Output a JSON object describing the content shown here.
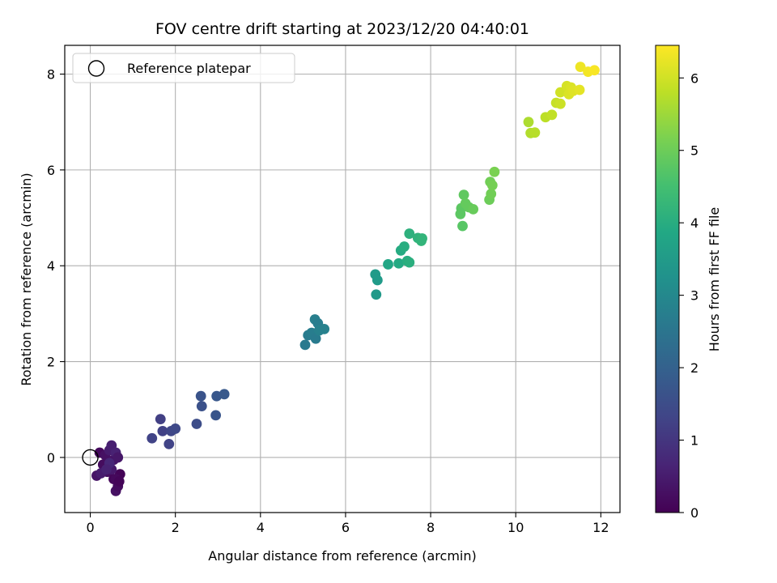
{
  "chart_data": {
    "type": "scatter",
    "title": "FOV centre drift starting at 2023/12/20 04:40:01",
    "xlabel": "Angular distance from reference (arcmin)",
    "ylabel": "Rotation from reference (arcmin)",
    "xlim": [
      -0.6,
      12.45
    ],
    "ylim": [
      -1.15,
      8.6
    ],
    "xticks": [
      0,
      2,
      4,
      6,
      8,
      10,
      12
    ],
    "yticks": [
      0,
      2,
      4,
      6,
      8
    ],
    "grid": true,
    "legend": {
      "placement": "top-left",
      "entries": [
        "Reference platepar"
      ]
    },
    "reference_point": {
      "x": 0,
      "y": 0
    },
    "colorbar": {
      "label": "Hours from first FF file",
      "range": [
        0,
        6.45
      ],
      "ticks": [
        0,
        1,
        2,
        3,
        4,
        5,
        6
      ],
      "colormap": "viridis"
    },
    "points": [
      {
        "x": 0.22,
        "y": 0.1,
        "h": 0.15
      },
      {
        "x": 0.3,
        "y": -0.15,
        "h": 0.2
      },
      {
        "x": 0.35,
        "y": 0.05,
        "h": 0.3
      },
      {
        "x": 0.4,
        "y": -0.3,
        "h": 0.25
      },
      {
        "x": 0.45,
        "y": 0.15,
        "h": 0.5
      },
      {
        "x": 0.5,
        "y": 0.25,
        "h": 0.55
      },
      {
        "x": 0.55,
        "y": -0.05,
        "h": 0.35
      },
      {
        "x": 0.6,
        "y": 0.1,
        "h": 0.6
      },
      {
        "x": 0.65,
        "y": 0.0,
        "h": 0.4
      },
      {
        "x": 0.55,
        "y": -0.45,
        "h": 0.1
      },
      {
        "x": 0.6,
        "y": -0.7,
        "h": 0.3
      },
      {
        "x": 0.65,
        "y": -0.6,
        "h": 0.2
      },
      {
        "x": 0.7,
        "y": -0.35,
        "h": 0.05
      },
      {
        "x": 0.5,
        "y": -0.25,
        "h": 0.45
      },
      {
        "x": 0.15,
        "y": -0.38,
        "h": 0.35
      },
      {
        "x": 0.25,
        "y": -0.33,
        "h": 0.5
      },
      {
        "x": 0.45,
        "y": -0.12,
        "h": 0.7
      },
      {
        "x": 0.38,
        "y": -0.25,
        "h": 0.6
      },
      {
        "x": 0.6,
        "y": -0.45,
        "h": 0.15
      },
      {
        "x": 0.68,
        "y": -0.5,
        "h": 0.08
      },
      {
        "x": 1.45,
        "y": 0.4,
        "h": 1.3
      },
      {
        "x": 1.65,
        "y": 0.8,
        "h": 1.2
      },
      {
        "x": 1.7,
        "y": 0.55,
        "h": 1.25
      },
      {
        "x": 1.85,
        "y": 0.28,
        "h": 1.3
      },
      {
        "x": 1.9,
        "y": 0.55,
        "h": 1.35
      },
      {
        "x": 2.0,
        "y": 0.6,
        "h": 1.4
      },
      {
        "x": 2.5,
        "y": 0.7,
        "h": 1.5
      },
      {
        "x": 2.6,
        "y": 1.28,
        "h": 1.65
      },
      {
        "x": 2.62,
        "y": 1.07,
        "h": 1.6
      },
      {
        "x": 2.95,
        "y": 0.88,
        "h": 1.7
      },
      {
        "x": 2.97,
        "y": 1.28,
        "h": 1.75
      },
      {
        "x": 3.15,
        "y": 1.32,
        "h": 1.8
      },
      {
        "x": 5.05,
        "y": 2.35,
        "h": 2.6
      },
      {
        "x": 5.12,
        "y": 2.55,
        "h": 2.65
      },
      {
        "x": 5.2,
        "y": 2.6,
        "h": 2.7
      },
      {
        "x": 5.28,
        "y": 2.88,
        "h": 2.75
      },
      {
        "x": 5.3,
        "y": 2.48,
        "h": 2.65
      },
      {
        "x": 5.35,
        "y": 2.8,
        "h": 2.7
      },
      {
        "x": 5.38,
        "y": 2.65,
        "h": 2.8
      },
      {
        "x": 5.5,
        "y": 2.68,
        "h": 2.8
      },
      {
        "x": 6.7,
        "y": 3.82,
        "h": 3.5
      },
      {
        "x": 6.72,
        "y": 3.4,
        "h": 3.45
      },
      {
        "x": 6.75,
        "y": 3.7,
        "h": 3.5
      },
      {
        "x": 7.0,
        "y": 4.03,
        "h": 3.8
      },
      {
        "x": 7.25,
        "y": 4.05,
        "h": 3.9
      },
      {
        "x": 7.3,
        "y": 4.32,
        "h": 3.95
      },
      {
        "x": 7.38,
        "y": 4.4,
        "h": 4.0
      },
      {
        "x": 7.45,
        "y": 4.1,
        "h": 4.0
      },
      {
        "x": 7.5,
        "y": 4.07,
        "h": 4.05
      },
      {
        "x": 7.5,
        "y": 4.67,
        "h": 4.1
      },
      {
        "x": 7.7,
        "y": 4.58,
        "h": 4.15
      },
      {
        "x": 7.78,
        "y": 4.52,
        "h": 4.2
      },
      {
        "x": 7.8,
        "y": 4.57,
        "h": 4.2
      },
      {
        "x": 8.7,
        "y": 5.08,
        "h": 4.8
      },
      {
        "x": 8.72,
        "y": 5.2,
        "h": 4.8
      },
      {
        "x": 8.75,
        "y": 4.83,
        "h": 4.75
      },
      {
        "x": 8.78,
        "y": 5.48,
        "h": 4.85
      },
      {
        "x": 8.82,
        "y": 5.3,
        "h": 4.9
      },
      {
        "x": 8.9,
        "y": 5.22,
        "h": 4.9
      },
      {
        "x": 9.0,
        "y": 5.18,
        "h": 4.95
      },
      {
        "x": 9.38,
        "y": 5.38,
        "h": 5.0
      },
      {
        "x": 9.4,
        "y": 5.75,
        "h": 5.05
      },
      {
        "x": 9.42,
        "y": 5.5,
        "h": 5.05
      },
      {
        "x": 9.45,
        "y": 5.68,
        "h": 5.1
      },
      {
        "x": 9.5,
        "y": 5.96,
        "h": 5.15
      },
      {
        "x": 10.3,
        "y": 7.0,
        "h": 5.65
      },
      {
        "x": 10.35,
        "y": 6.77,
        "h": 5.7
      },
      {
        "x": 10.45,
        "y": 6.78,
        "h": 5.75
      },
      {
        "x": 10.7,
        "y": 7.1,
        "h": 5.8
      },
      {
        "x": 10.85,
        "y": 7.15,
        "h": 5.85
      },
      {
        "x": 10.95,
        "y": 7.4,
        "h": 5.9
      },
      {
        "x": 11.05,
        "y": 7.38,
        "h": 5.95
      },
      {
        "x": 11.05,
        "y": 7.62,
        "h": 6.0
      },
      {
        "x": 11.2,
        "y": 7.75,
        "h": 6.05
      },
      {
        "x": 11.25,
        "y": 7.58,
        "h": 6.1
      },
      {
        "x": 11.3,
        "y": 7.72,
        "h": 6.1
      },
      {
        "x": 11.35,
        "y": 7.65,
        "h": 6.15
      },
      {
        "x": 11.5,
        "y": 7.67,
        "h": 6.2
      },
      {
        "x": 11.52,
        "y": 8.15,
        "h": 6.3
      },
      {
        "x": 11.7,
        "y": 8.05,
        "h": 6.35
      },
      {
        "x": 11.85,
        "y": 8.08,
        "h": 6.4
      }
    ]
  }
}
